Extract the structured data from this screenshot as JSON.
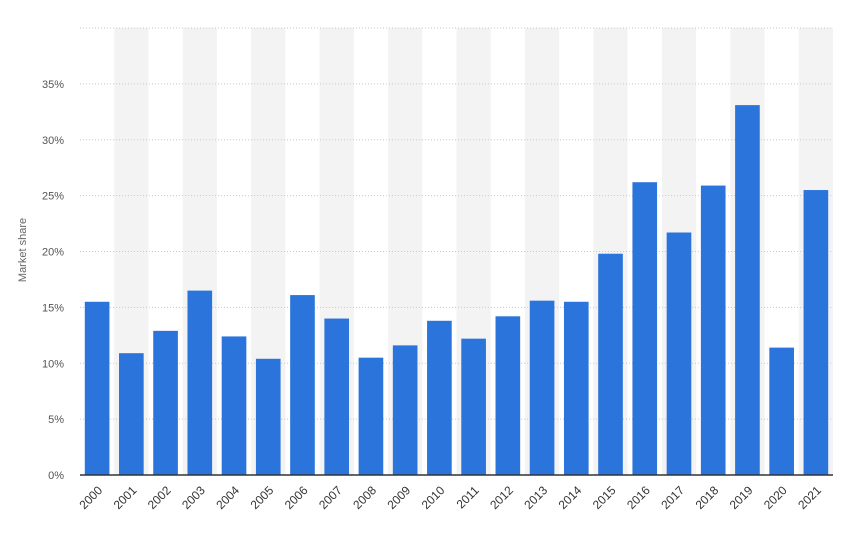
{
  "chart_data": {
    "type": "bar",
    "title": "",
    "xlabel": "",
    "ylabel": "Market share",
    "categories": [
      "2000",
      "2001",
      "2002",
      "2003",
      "2004",
      "2005",
      "2006",
      "2007",
      "2008",
      "2009",
      "2010",
      "2011",
      "2012",
      "2013",
      "2014",
      "2015",
      "2016",
      "2017",
      "2018",
      "2019",
      "2020",
      "2021"
    ],
    "values": [
      15.5,
      10.9,
      12.9,
      16.5,
      12.4,
      10.4,
      16.1,
      14.0,
      10.5,
      11.6,
      13.8,
      12.2,
      14.2,
      15.6,
      15.5,
      19.8,
      26.2,
      21.7,
      25.9,
      33.1,
      11.4,
      25.5
    ],
    "ylim": [
      0,
      40
    ],
    "yticks": [
      0,
      5,
      10,
      15,
      20,
      25,
      30,
      35
    ],
    "ytick_labels": [
      "0%",
      "5%",
      "10%",
      "15%",
      "20%",
      "25%",
      "30%",
      "35%"
    ],
    "grid": true,
    "colors": {
      "bar": "#2a74dc",
      "band": "#f3f3f3",
      "grid": "#c8c8c8",
      "axis": "#333333"
    }
  }
}
